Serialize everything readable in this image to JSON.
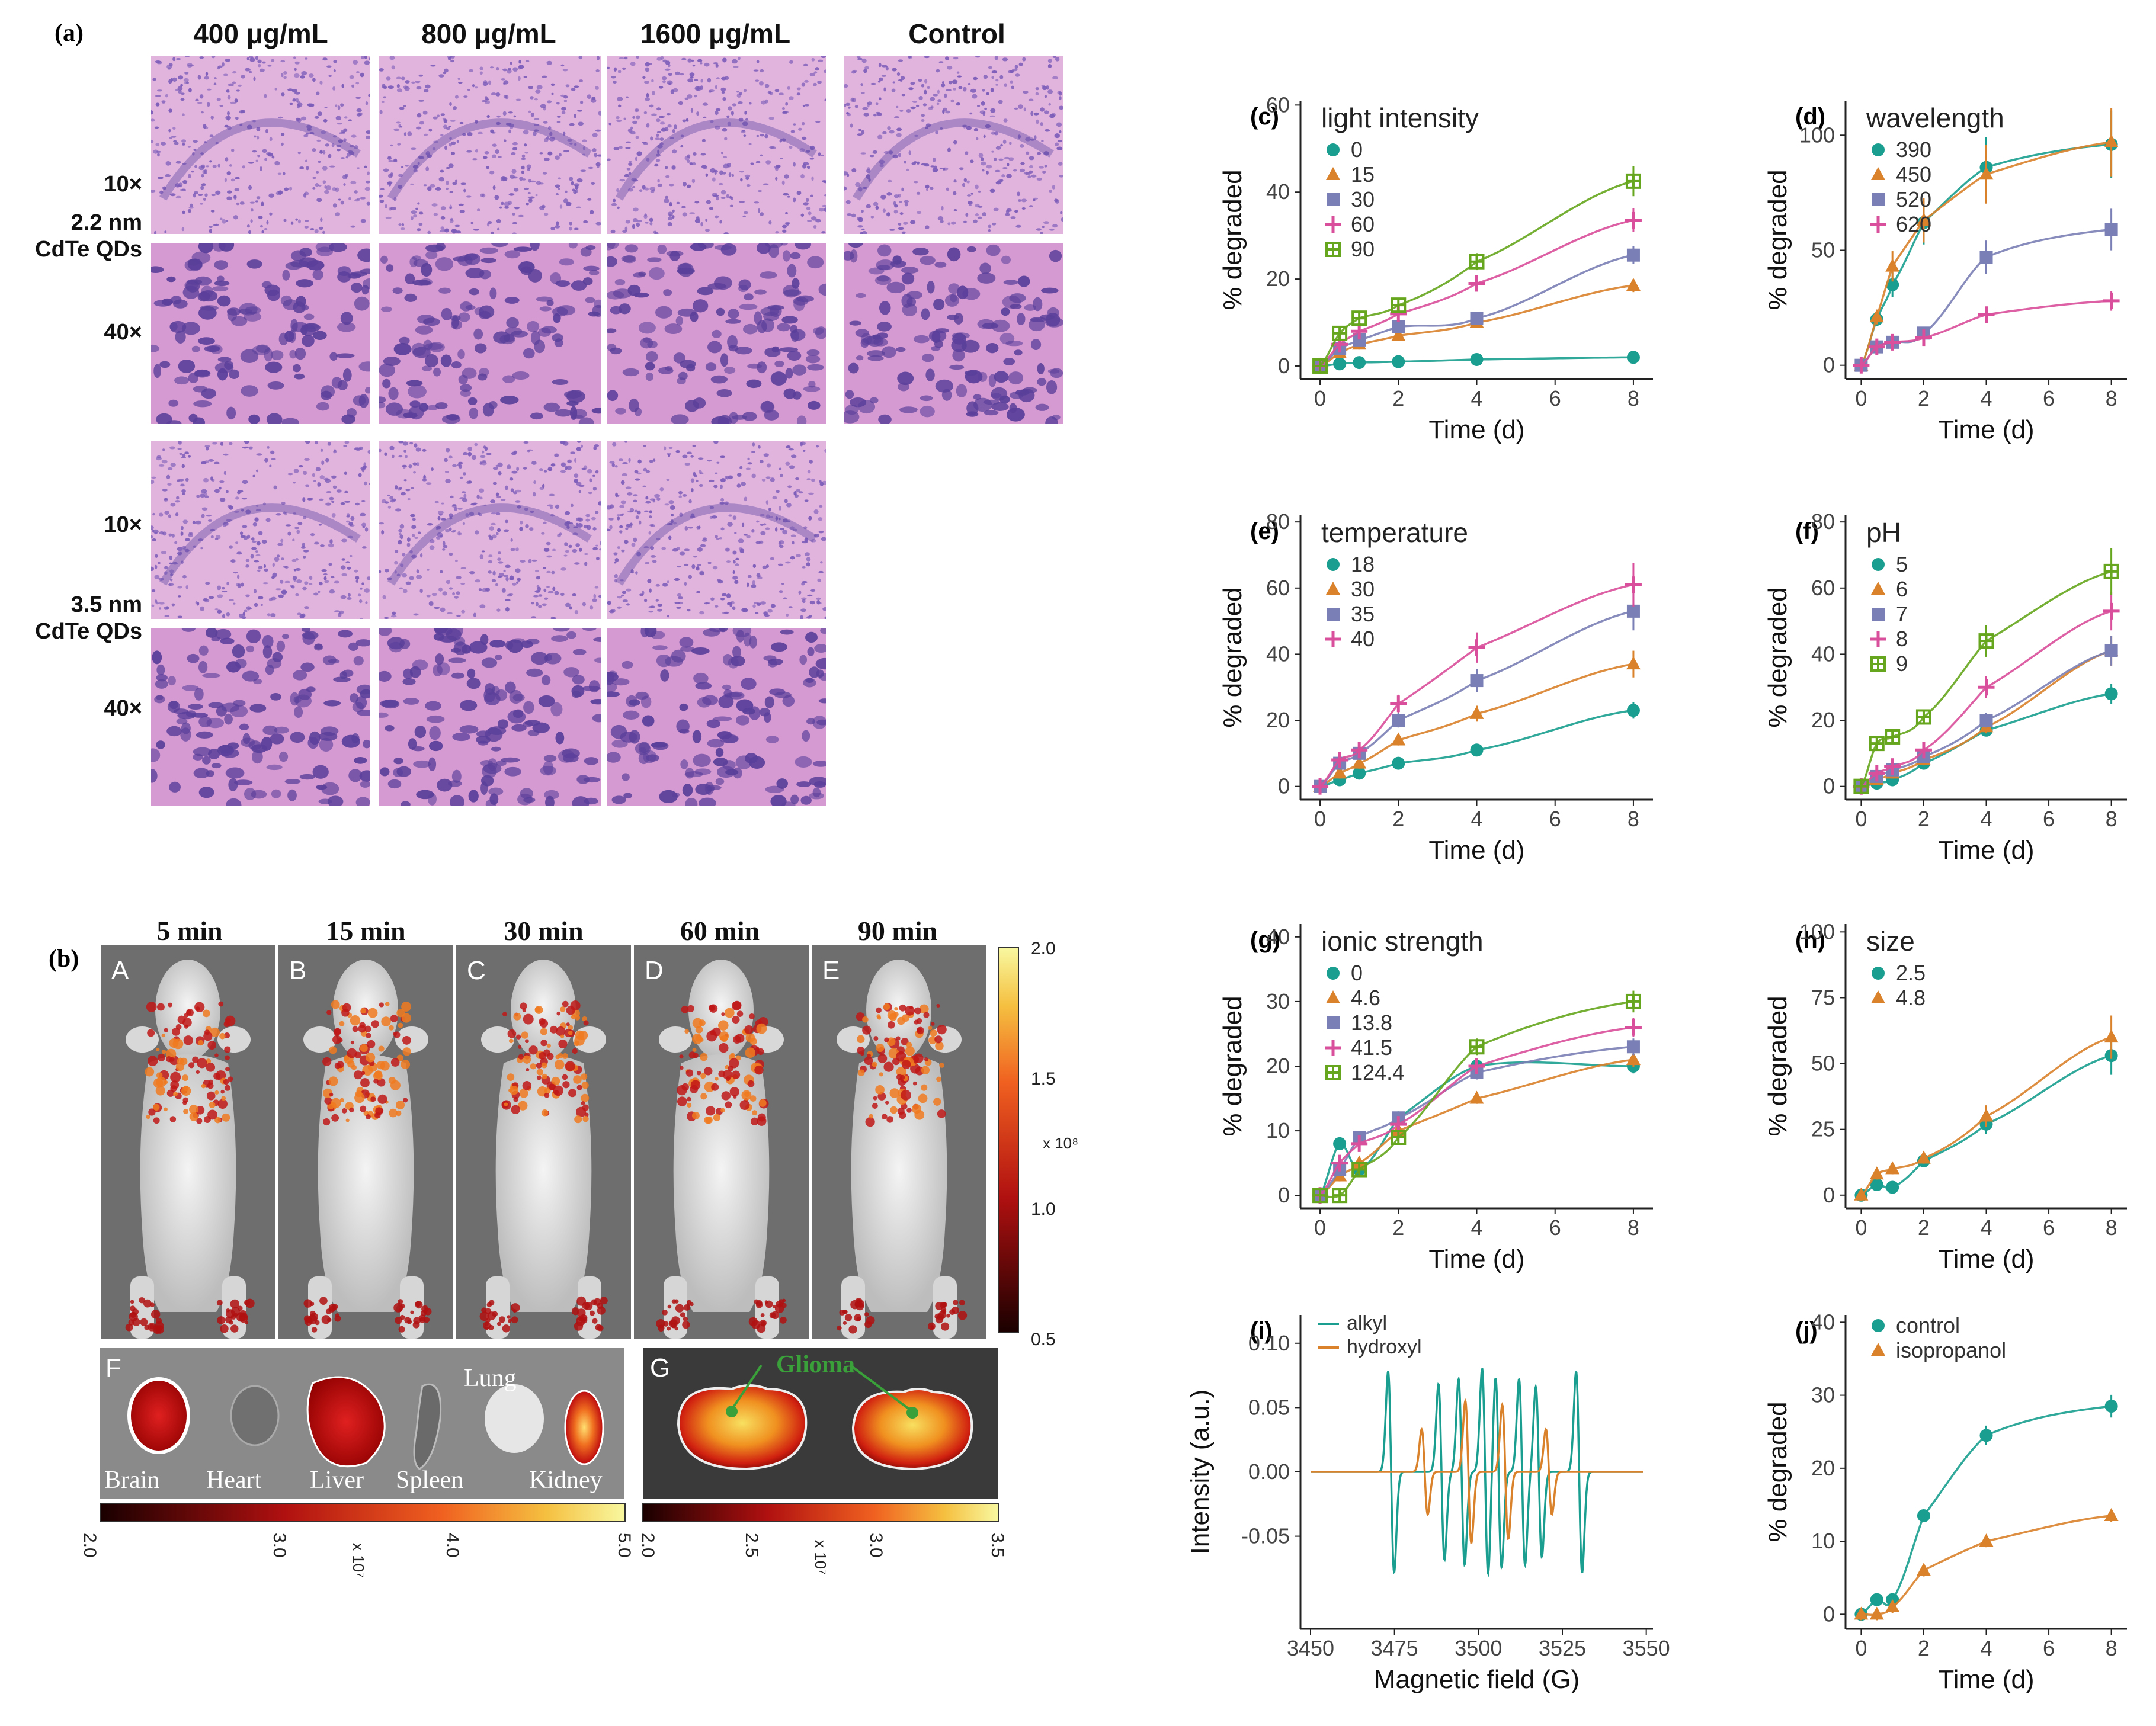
{
  "panels": {
    "a": {
      "label": "(a)",
      "columns": [
        "400 μg/mL",
        "800 μg/mL",
        "1600 μg/mL",
        "Control"
      ],
      "row_labels": {
        "mag10": "10×",
        "mag40": "40×",
        "group1": [
          "2.2 nm",
          "CdTe QDs"
        ],
        "group2": [
          "3.5 nm",
          "CdTe QDs"
        ]
      },
      "colors": {
        "tissue_pink": "#d9a2d6",
        "nucleus_purple": "#6a4fa8",
        "arrow_black": "#000000",
        "arrow_blue": "#2a5bd7",
        "arrow_green": "#3aa03a",
        "arrow_red": "#d23a2a",
        "arrow_yellow": "#e8c23a"
      }
    },
    "b": {
      "label": "(b)",
      "times": [
        "5 min",
        "15 min",
        "30 min",
        "60 min",
        "90 min"
      ],
      "mouse_letters": [
        "A",
        "B",
        "C",
        "D",
        "E"
      ],
      "colorbar_right": {
        "ticks": [
          "2.0",
          "1.5",
          "1.0",
          "0.5"
        ],
        "unit": "x 10⁸"
      },
      "organ_panel": {
        "letter": "F",
        "organs": [
          "Brain",
          "Heart",
          "Liver",
          "Spleen",
          "Lung",
          "Kidney"
        ],
        "colorbar": {
          "ticks": [
            "2.0",
            "3.0",
            "4.0",
            "5.0"
          ],
          "unit": "x 10⁷"
        }
      },
      "glioma_panel": {
        "letter": "G",
        "annotation": "Glioma",
        "colorbar": {
          "ticks": [
            "2.0",
            "2.5",
            "3.0",
            "3.5"
          ],
          "unit": "x 10⁷"
        }
      }
    }
  },
  "chart_data": [
    {
      "id": "c",
      "label": "(c)",
      "type": "line",
      "title": "light intensity",
      "xlabel": "Time (d)",
      "ylabel": "% degraded",
      "xlim": [
        -0.5,
        8.5
      ],
      "ylim": [
        -3,
        61
      ],
      "xticks": [
        0,
        2,
        4,
        6,
        8
      ],
      "yticks": [
        0,
        20,
        40,
        60
      ],
      "x": [
        0,
        0.5,
        1,
        2,
        4,
        8
      ],
      "series": [
        {
          "name": "0",
          "values": [
            0,
            0.5,
            0.8,
            1,
            1.5,
            2
          ]
        },
        {
          "name": "15",
          "values": [
            0,
            3,
            5,
            7,
            10,
            18.5
          ]
        },
        {
          "name": "30",
          "values": [
            0,
            4,
            6,
            9,
            11,
            25.5
          ]
        },
        {
          "name": "60",
          "values": [
            0,
            5,
            8,
            12,
            19,
            33.5
          ]
        },
        {
          "name": "90",
          "values": [
            0,
            7.5,
            11,
            14,
            24,
            42.5
          ]
        }
      ]
    },
    {
      "id": "d",
      "label": "(d)",
      "type": "line",
      "title": "wavelength",
      "xlabel": "Time (d)",
      "ylabel": "% degraded",
      "xlim": [
        -0.5,
        8.5
      ],
      "ylim": [
        -6,
        115
      ],
      "xticks": [
        0,
        2,
        4,
        6,
        8
      ],
      "yticks": [
        0,
        50,
        100
      ],
      "x": [
        0,
        0.5,
        1,
        2,
        4,
        8
      ],
      "series": [
        {
          "name": "390",
          "values": [
            0,
            20,
            35,
            62,
            86,
            96
          ]
        },
        {
          "name": "450",
          "values": [
            0,
            21,
            43,
            63,
            83,
            97
          ]
        },
        {
          "name": "520",
          "values": [
            0,
            8,
            10,
            14,
            47,
            59
          ]
        },
        {
          "name": "620",
          "values": [
            0,
            8,
            10,
            12,
            22,
            28
          ]
        }
      ]
    },
    {
      "id": "e",
      "label": "(e)",
      "type": "line",
      "title": "temperature",
      "xlabel": "Time (d)",
      "ylabel": "% degraded",
      "xlim": [
        -0.5,
        8.5
      ],
      "ylim": [
        -4,
        82
      ],
      "xticks": [
        0,
        2,
        4,
        6,
        8
      ],
      "yticks": [
        0,
        20,
        40,
        60,
        80
      ],
      "x": [
        0,
        0.5,
        1,
        2,
        4,
        8
      ],
      "series": [
        {
          "name": "18",
          "values": [
            0,
            2,
            4,
            7,
            11,
            23
          ]
        },
        {
          "name": "30",
          "values": [
            0,
            4,
            7,
            14,
            22,
            37
          ]
        },
        {
          "name": "35",
          "values": [
            0,
            7,
            10,
            20,
            32,
            53
          ]
        },
        {
          "name": "40",
          "values": [
            0,
            8,
            11,
            25,
            42,
            61
          ]
        }
      ]
    },
    {
      "id": "f",
      "label": "(f)",
      "type": "line",
      "title": "pH",
      "xlabel": "Time (d)",
      "ylabel": "% degraded",
      "xlim": [
        -0.5,
        8.5
      ],
      "ylim": [
        -4,
        82
      ],
      "xticks": [
        0,
        2,
        4,
        6,
        8
      ],
      "yticks": [
        0,
        20,
        40,
        60,
        80
      ],
      "x": [
        0,
        0.5,
        1,
        2,
        4,
        8
      ],
      "series": [
        {
          "name": "5",
          "values": [
            0,
            1,
            2,
            7,
            17,
            28
          ]
        },
        {
          "name": "6",
          "values": [
            0,
            2,
            4,
            8,
            18,
            41
          ]
        },
        {
          "name": "7",
          "values": [
            0,
            3,
            5,
            9,
            20,
            41
          ]
        },
        {
          "name": "8",
          "values": [
            0,
            4,
            6,
            11,
            30,
            53
          ]
        },
        {
          "name": "9",
          "values": [
            0,
            13,
            15,
            21,
            44,
            65
          ]
        }
      ]
    },
    {
      "id": "g",
      "label": "(g)",
      "type": "line",
      "title": "ionic strength",
      "xlabel": "Time (d)",
      "ylabel": "% degraded",
      "xlim": [
        -0.5,
        8.5
      ],
      "ylim": [
        -2,
        42
      ],
      "xticks": [
        0,
        2,
        4,
        6,
        8
      ],
      "yticks": [
        0,
        10,
        20,
        30,
        40
      ],
      "x": [
        0,
        0.5,
        1,
        2,
        4,
        8
      ],
      "series": [
        {
          "name": "0",
          "values": [
            0,
            8,
            4,
            12,
            20,
            20
          ]
        },
        {
          "name": "4.6",
          "values": [
            0,
            3,
            5,
            10,
            15,
            21
          ]
        },
        {
          "name": "13.8",
          "values": [
            0,
            4,
            9,
            12,
            19,
            23
          ]
        },
        {
          "name": "41.5",
          "values": [
            0,
            5,
            8,
            11,
            20,
            26
          ]
        },
        {
          "name": "124.4",
          "values": [
            0,
            0,
            4,
            9,
            23,
            30
          ]
        }
      ]
    },
    {
      "id": "h",
      "label": "(h)",
      "type": "line",
      "title": "size",
      "xlabel": "Time (d)",
      "ylabel": "% degraded",
      "xlim": [
        -0.5,
        8.5
      ],
      "ylim": [
        -5,
        103
      ],
      "xticks": [
        0,
        2,
        4,
        6,
        8
      ],
      "yticks": [
        0,
        25,
        50,
        75,
        100
      ],
      "x": [
        0,
        0.5,
        1,
        2,
        4,
        8
      ],
      "series": [
        {
          "name": "2.5",
          "values": [
            0,
            4,
            3,
            13,
            27,
            53
          ]
        },
        {
          "name": "4.8",
          "values": [
            0,
            8,
            10,
            14,
            30,
            60
          ]
        }
      ]
    },
    {
      "id": "i",
      "label": "(i)",
      "type": "line",
      "subtype": "epr_spectrum",
      "xlabel": "Magnetic field (G)",
      "ylabel": "Intensity (a.u.)",
      "xlim": [
        3447,
        3552
      ],
      "ylim": [
        -0.122,
        0.122
      ],
      "xticks": [
        3450,
        3475,
        3500,
        3525,
        3550
      ],
      "yticks": [
        -0.05,
        0.0,
        0.05,
        0.1
      ],
      "ytick_labels": [
        "-0.05",
        "0.00",
        "0.05",
        "0.10"
      ],
      "series": [
        {
          "name": "alkyl",
          "lines": [
            {
              "center": 3474,
              "amp": 0.078
            },
            {
              "center": 3489,
              "amp": 0.068
            },
            {
              "center": 3495,
              "amp": 0.072
            },
            {
              "center": 3502,
              "amp": 0.08
            },
            {
              "center": 3506,
              "amp": 0.074
            },
            {
              "center": 3513,
              "amp": 0.072
            },
            {
              "center": 3518,
              "amp": 0.066
            },
            {
              "center": 3530,
              "amp": 0.078
            }
          ]
        },
        {
          "name": "hydroxyl",
          "lines": [
            {
              "center": 3484,
              "amp": 0.033
            },
            {
              "center": 3497,
              "amp": 0.055
            },
            {
              "center": 3508,
              "amp": 0.052
            },
            {
              "center": 3521,
              "amp": 0.033
            }
          ]
        }
      ]
    },
    {
      "id": "j",
      "label": "(j)",
      "type": "line",
      "xlabel": "Time (d)",
      "ylabel": "% degraded",
      "xlim": [
        -0.5,
        8.5
      ],
      "ylim": [
        -2,
        41
      ],
      "xticks": [
        0,
        2,
        4,
        6,
        8
      ],
      "yticks": [
        0,
        10,
        20,
        30,
        40
      ],
      "x": [
        0,
        0.5,
        1,
        2,
        4,
        8
      ],
      "series": [
        {
          "name": "control",
          "values": [
            0,
            2,
            2,
            13.5,
            24.5,
            28.5
          ]
        },
        {
          "name": "isopropanol",
          "values": [
            0,
            0,
            1,
            6,
            10,
            13.5
          ]
        }
      ]
    }
  ],
  "series_colors": [
    "#1a9e8f",
    "#d9822b",
    "#7a7fb5",
    "#d94f9b",
    "#66a61e"
  ],
  "markers": [
    "circle",
    "triangle",
    "square",
    "plus",
    "crossbox"
  ]
}
